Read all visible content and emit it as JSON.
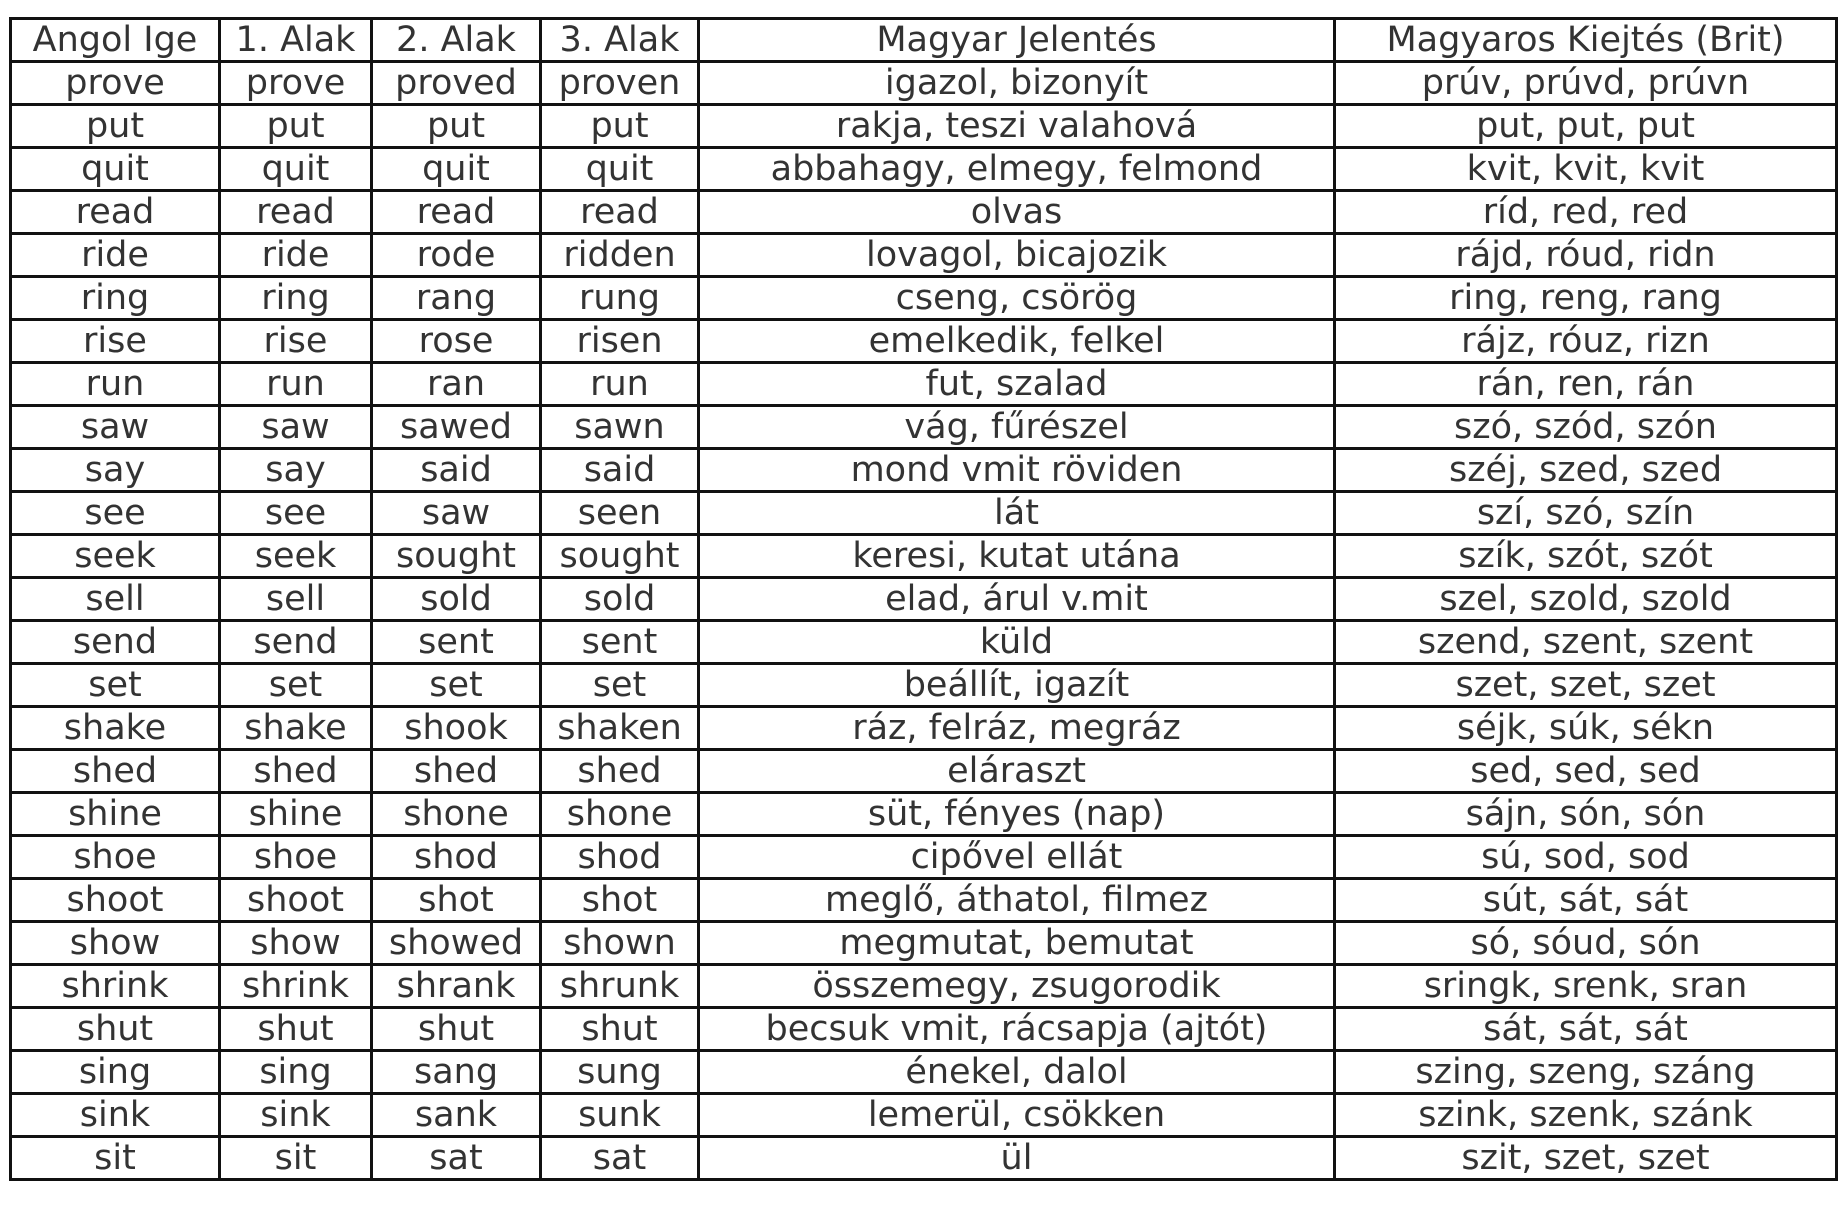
{
  "table": {
    "headers": [
      "Angol Ige",
      "1. Alak",
      "2. Alak",
      "3. Alak",
      "Magyar Jelentés",
      "Magyaros Kiejtés (Brit)"
    ],
    "rows": [
      [
        "prove",
        "prove",
        "proved",
        "proven",
        "igazol, bizonyít",
        "prúv, prúvd, prúvn"
      ],
      [
        "put",
        "put",
        "put",
        "put",
        "rakja, teszi valahová",
        "put, put, put"
      ],
      [
        "quit",
        "quit",
        "quit",
        "quit",
        "abbahagy, elmegy, felmond",
        "kvit, kvit, kvit"
      ],
      [
        "read",
        "read",
        "read",
        "read",
        "olvas",
        "ríd, red, red"
      ],
      [
        "ride",
        "ride",
        "rode",
        "ridden",
        "lovagol, bicajozik",
        "rájd, róud, ridn"
      ],
      [
        "ring",
        "ring",
        "rang",
        "rung",
        "cseng, csörög",
        "ring, reng, rang"
      ],
      [
        "rise",
        "rise",
        "rose",
        "risen",
        "emelkedik, felkel",
        "rájz, róuz, rizn"
      ],
      [
        "run",
        "run",
        "ran",
        "run",
        "fut, szalad",
        "rán, ren, rán"
      ],
      [
        "saw",
        "saw",
        "sawed",
        "sawn",
        "vág, fűrészel",
        "szó, szód, szón"
      ],
      [
        "say",
        "say",
        "said",
        "said",
        "mond vmit röviden",
        "széj, szed, szed"
      ],
      [
        "see",
        "see",
        "saw",
        "seen",
        "lát",
        "szí, szó, szín"
      ],
      [
        "seek",
        "seek",
        "sought",
        "sought",
        "keresi, kutat utána",
        "szík, szót, szót"
      ],
      [
        "sell",
        "sell",
        "sold",
        "sold",
        "elad, árul v.mit",
        "szel, szold, szold"
      ],
      [
        "send",
        "send",
        "sent",
        "sent",
        "küld",
        "szend, szent, szent"
      ],
      [
        "set",
        "set",
        "set",
        "set",
        "beállít, igazít",
        "szet, szet, szet"
      ],
      [
        "shake",
        "shake",
        "shook",
        "shaken",
        "ráz, felráz, megráz",
        "séjk, súk, sékn"
      ],
      [
        "shed",
        "shed",
        "shed",
        "shed",
        "eláraszt",
        "sed, sed, sed"
      ],
      [
        "shine",
        "shine",
        "shone",
        "shone",
        "süt, fényes (nap)",
        "sájn, són, són"
      ],
      [
        "shoe",
        "shoe",
        "shod",
        "shod",
        "cipővel ellát",
        "sú, sod, sod"
      ],
      [
        "shoot",
        "shoot",
        "shot",
        "shot",
        "meglő, áthatol, filmez",
        "sút, sát, sát"
      ],
      [
        "show",
        "show",
        "showed",
        "shown",
        "megmutat, bemutat",
        "só, sóud, són"
      ],
      [
        "shrink",
        "shrink",
        "shrank",
        "shrunk",
        "összemegy, zsugorodik",
        "sringk, srenk, sran"
      ],
      [
        "shut",
        "shut",
        "shut",
        "shut",
        "becsuk vmit, rácsapja (ajtót)",
        "sát, sát, sát"
      ],
      [
        "sing",
        "sing",
        "sang",
        "sung",
        "énekel, dalol",
        "szing, szeng, száng"
      ],
      [
        "sink",
        "sink",
        "sank",
        "sunk",
        "lemerül, csökken",
        "szink, szenk, szánk"
      ],
      [
        "sit",
        "sit",
        "sat",
        "sat",
        "ül",
        "szit, szet, szet"
      ]
    ]
  }
}
